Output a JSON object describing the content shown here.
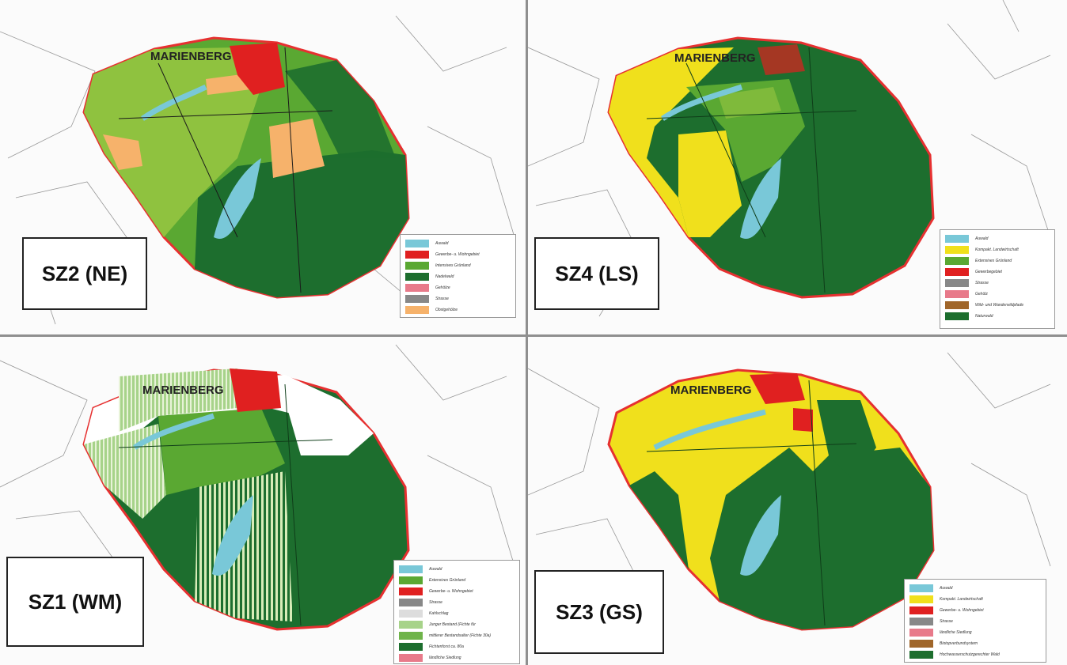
{
  "colors": {
    "auwald": "#79c8d8",
    "siedlung": "#e02020",
    "intensiv": "#8fc23f",
    "extensiv": "#5aa832",
    "nadelwald": "#1d6e2e",
    "gehoelz": "#e87a8a",
    "strasse": "#888888",
    "obst": "#f6b26b",
    "kultur": "#f0e01c",
    "boundary": "#e63030"
  },
  "panels": [
    {
      "label": "SZ2 (NE)",
      "town": "MARIENBERG",
      "legend": [
        {
          "text": "Auwald",
          "color": "#79c8d8"
        },
        {
          "text": "Gewerbe- u. Wohngebiet",
          "color": "#e02020"
        },
        {
          "text": "Intensives Grünland",
          "color": "#5aa832"
        },
        {
          "text": "Nadelwald",
          "color": "#1d6e2e"
        },
        {
          "text": "Gehölze",
          "color": "#e87a8a"
        },
        {
          "text": "Strasse",
          "color": "#888888"
        },
        {
          "text": "Obstgehölze",
          "color": "#f6b26b"
        }
      ]
    },
    {
      "label": "SZ4 (LS)",
      "town": "MARIENBERG",
      "legend": [
        {
          "text": "Auwald",
          "color": "#79c8d8"
        },
        {
          "text": "Kompakt. Landwirtschaft",
          "color": "#f0e01c"
        },
        {
          "text": "Extensives Grünland",
          "color": "#5aa832"
        },
        {
          "text": "Gewerbegebiet",
          "color": "#e02020"
        },
        {
          "text": "Strasse",
          "color": "#888888"
        },
        {
          "text": "Gehölz",
          "color": "#e87a8a"
        },
        {
          "text": "Wild- und Wanderwildpfade",
          "color": "#a0662a"
        },
        {
          "text": "Naturwald",
          "color": "#1d6e2e"
        }
      ]
    },
    {
      "label": "SZ1 (WM)",
      "town": "MARIENBERG",
      "legend": [
        {
          "text": "Auwald",
          "color": "#79c8d8"
        },
        {
          "text": "Extensives Grünland",
          "color": "#5aa832"
        },
        {
          "text": "Gewerbe- u. Wohngebiet",
          "color": "#e02020"
        },
        {
          "text": "Strasse",
          "color": "#888888"
        },
        {
          "text": "Kahlschlag",
          "color": "#dddddd"
        },
        {
          "text": "Junger Bestand (Fichte für",
          "color": "#a7d38a"
        },
        {
          "text": "mittlerer Bestandsalter (Fichte 30a)",
          "color": "#6fb44a"
        },
        {
          "text": "Fichtenforst ca. 80a",
          "color": "#1d6e2e"
        },
        {
          "text": "ländliche Siedlung",
          "color": "#e87a8a"
        }
      ]
    },
    {
      "label": "SZ3 (GS)",
      "town": "MARIENBERG",
      "legend": [
        {
          "text": "Auwald",
          "color": "#79c8d8"
        },
        {
          "text": "Kompakt. Landwirtschaft",
          "color": "#f0e01c"
        },
        {
          "text": "Gewerbe- u. Wohngebiet",
          "color": "#e02020"
        },
        {
          "text": "Strasse",
          "color": "#888888"
        },
        {
          "text": "ländliche Siedlung",
          "color": "#e87a8a"
        },
        {
          "text": "Biotopverbundsystem",
          "color": "#a0662a"
        },
        {
          "text": "Hochwasserschutzgerechter Wald",
          "color": "#1d6e2e"
        }
      ]
    }
  ]
}
